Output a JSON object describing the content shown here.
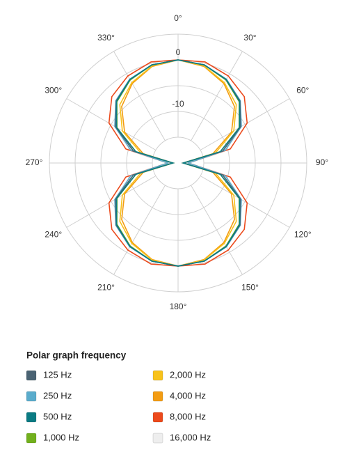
{
  "chart_data": {
    "type": "polar",
    "theta": [
      0,
      15,
      30,
      45,
      60,
      75,
      90,
      105,
      120,
      135,
      150,
      165,
      180,
      195,
      210,
      225,
      240,
      255,
      270,
      285,
      300,
      315,
      330,
      345
    ],
    "rlim": [
      -20,
      5
    ],
    "rgrid": [
      -15,
      -10,
      -5,
      0,
      5
    ],
    "rticks": [
      0,
      -10
    ],
    "thetaticks": [
      {
        "value": 0,
        "label": "0°"
      },
      {
        "value": 30,
        "label": "30°"
      },
      {
        "value": 60,
        "label": "60°"
      },
      {
        "value": 90,
        "label": "90°"
      },
      {
        "value": 120,
        "label": "120°"
      },
      {
        "value": 150,
        "label": "150°"
      },
      {
        "value": 180,
        "label": "180°"
      },
      {
        "value": 210,
        "label": "210°"
      },
      {
        "value": 240,
        "label": "240°"
      },
      {
        "value": 270,
        "label": "270°"
      },
      {
        "value": 300,
        "label": "300°"
      },
      {
        "value": 330,
        "label": "330°"
      }
    ],
    "legend_title": "Polar graph frequency",
    "series": [
      {
        "name": "16,000 Hz",
        "color": "#eeeeee",
        "values": [
          0,
          -0.3,
          -1.3,
          -3,
          -6,
          -11,
          -19,
          -11,
          -6,
          -3,
          -1.3,
          -0.3,
          0,
          -0.3,
          -1.3,
          -3,
          -6,
          -11,
          -19,
          -11,
          -6,
          -3,
          -1.3,
          -0.3
        ]
      },
      {
        "name": "8,000 Hz",
        "color": "#ec4a1c",
        "values": [
          0,
          0.3,
          -0.5,
          -1.8,
          -4.5,
          -9.5,
          -18,
          -9.5,
          -4.5,
          -1.8,
          -0.5,
          0.3,
          0,
          0.3,
          -0.5,
          -1.8,
          -4.5,
          -9.5,
          -18,
          -9.5,
          -4.5,
          -1.8,
          -0.5,
          0.3
        ]
      },
      {
        "name": "4,000 Hz",
        "color": "#f39c12",
        "values": [
          0,
          -0.6,
          -2.2,
          -4.5,
          -8,
          -13,
          -19,
          -13,
          -8,
          -4.5,
          -2.2,
          -0.6,
          0,
          -0.6,
          -2.2,
          -4.5,
          -8,
          -13,
          -19,
          -13,
          -8,
          -4.5,
          -2.2,
          -0.6
        ]
      },
      {
        "name": "2,000 Hz",
        "color": "#f8c21a",
        "values": [
          0,
          -0.5,
          -2,
          -4,
          -7.5,
          -12.5,
          -19,
          -12.5,
          -7.5,
          -4,
          -2,
          -0.5,
          0,
          -0.5,
          -2,
          -4,
          -7.5,
          -12.5,
          -19,
          -12.5,
          -7.5,
          -4,
          -2,
          -0.5
        ]
      },
      {
        "name": "1,000 Hz",
        "color": "#72b01d",
        "values": [
          0,
          -0.3,
          -1.4,
          -3.2,
          -6.3,
          -11.5,
          -19,
          -11.5,
          -6.3,
          -3.2,
          -1.4,
          -0.3,
          0,
          -0.3,
          -1.4,
          -3.2,
          -6.3,
          -11.5,
          -19,
          -11.5,
          -6.3,
          -3.2,
          -1.4,
          -0.3
        ]
      },
      {
        "name": "250 Hz",
        "color": "#5aaccc",
        "values": [
          0,
          -0.3,
          -1.2,
          -2.9,
          -5.8,
          -10.5,
          -18,
          -10.5,
          -5.8,
          -2.9,
          -1.2,
          -0.3,
          0,
          -0.3,
          -1.2,
          -2.9,
          -5.8,
          -10.5,
          -18,
          -10.5,
          -5.8,
          -2.9,
          -1.2,
          -0.3
        ]
      },
      {
        "name": "125 Hz",
        "color": "#4a6373",
        "values": [
          0,
          -0.3,
          -1.3,
          -3,
          -6,
          -11,
          -19,
          -11,
          -6,
          -3,
          -1.3,
          -0.3,
          0,
          -0.3,
          -1.3,
          -3,
          -6,
          -11,
          -19,
          -11,
          -6,
          -3,
          -1.3,
          -0.3
        ]
      },
      {
        "name": "500 Hz",
        "color": "#0a7b83",
        "values": [
          0,
          -0.3,
          -1.3,
          -3.1,
          -6.2,
          -11.5,
          -19,
          -11.5,
          -6.2,
          -3.1,
          -1.3,
          -0.3,
          0,
          -0.3,
          -1.3,
          -3.1,
          -6.2,
          -11.5,
          -19,
          -11.5,
          -6.2,
          -3.1,
          -1.3,
          -0.3
        ]
      }
    ],
    "legend_order": [
      6,
      5,
      7,
      4,
      3,
      2,
      1,
      0
    ]
  }
}
